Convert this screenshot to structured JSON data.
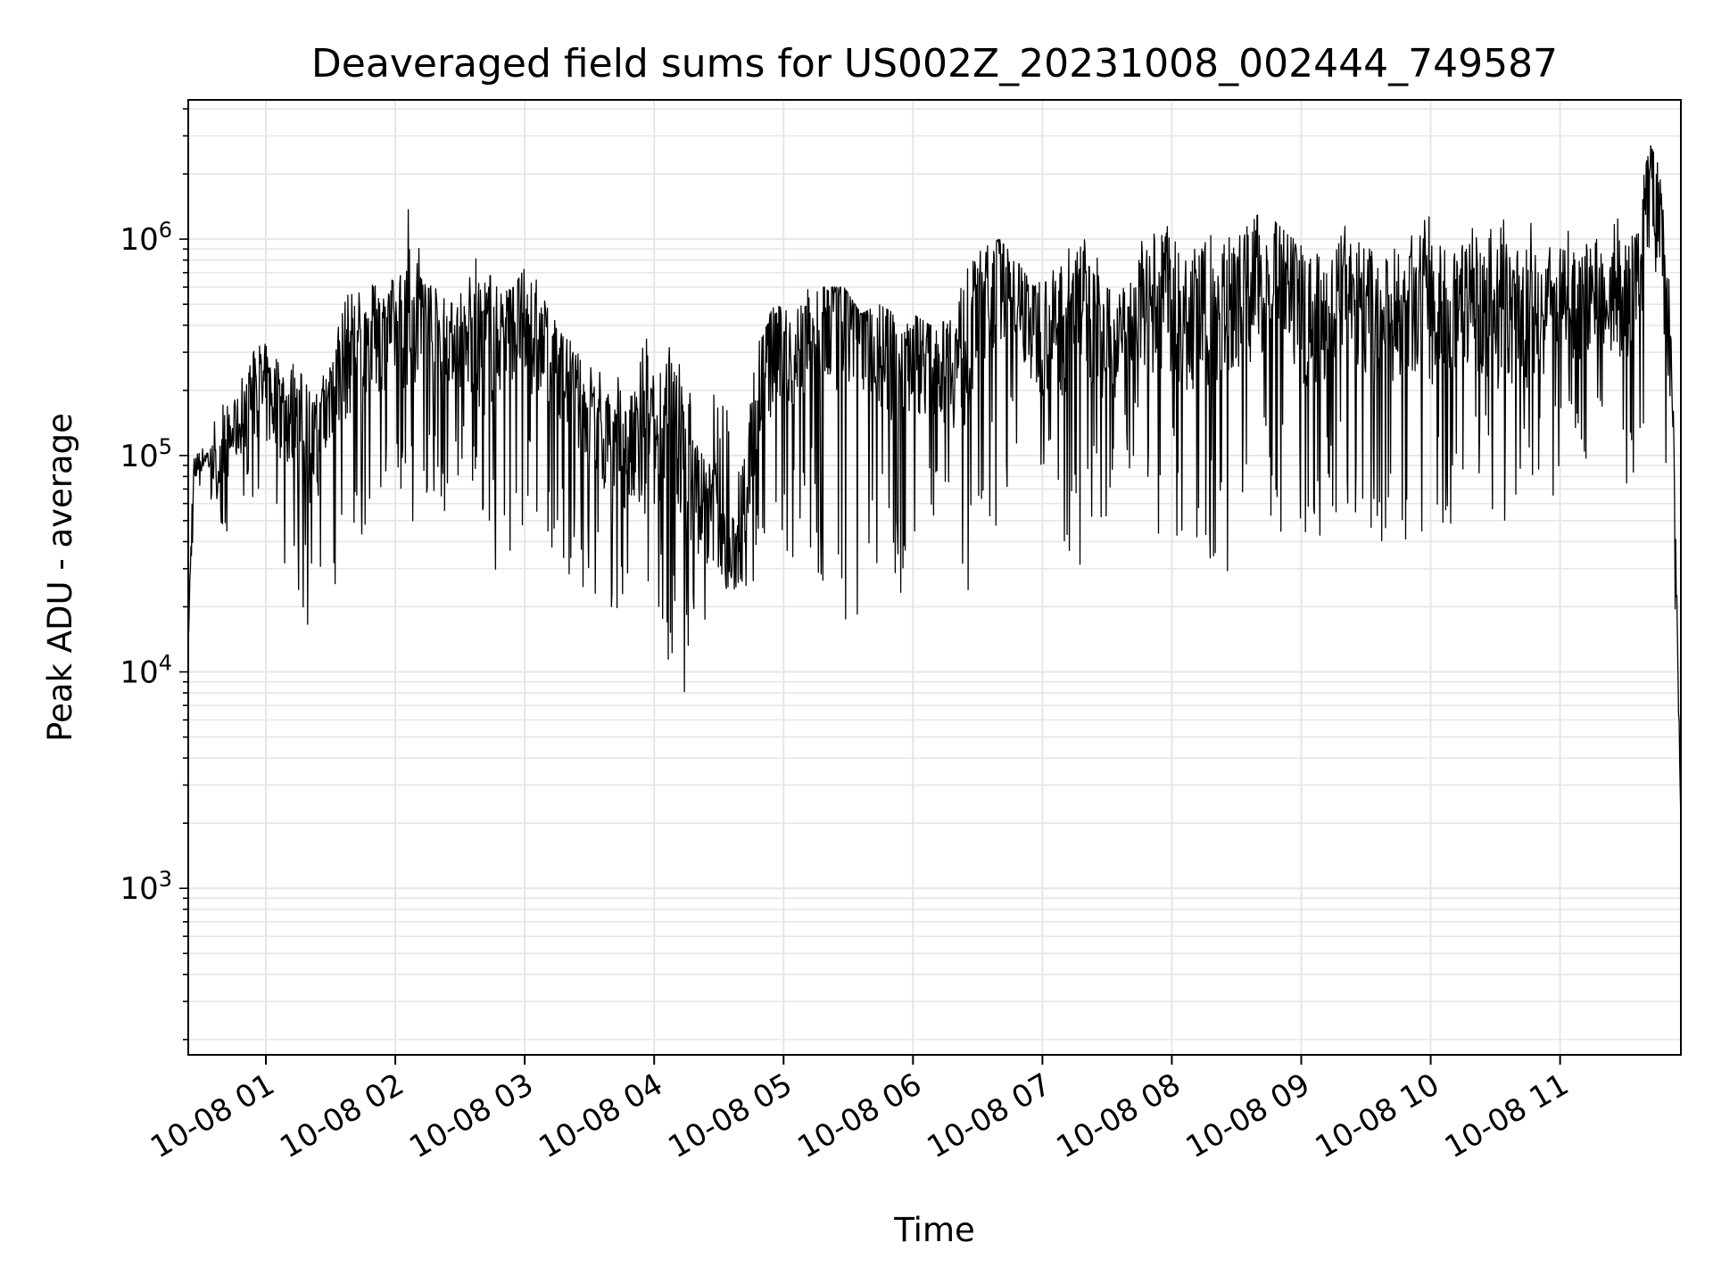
{
  "chart_data": {
    "type": "line",
    "title": "Deaveraged field sums for US002Z_20231008_002444_749587",
    "xlabel": "Time",
    "ylabel": "Peak ADU - average",
    "yscale": "log",
    "ylim": [
      170,
      4400000
    ],
    "xlim": [
      "2023-10-08 00:24",
      "2023-10-08 11:56"
    ],
    "grid": true,
    "line_color": "#000000",
    "grid_color": "#e6e6e6",
    "x_ticks": [
      "10-08 01",
      "10-08 02",
      "10-08 03",
      "10-08 04",
      "10-08 05",
      "10-08 06",
      "10-08 07",
      "10-08 08",
      "10-08 09",
      "10-08 10",
      "10-08 11"
    ],
    "x_tick_times": [
      "2023-10-08 01:00",
      "2023-10-08 02:00",
      "2023-10-08 03:00",
      "2023-10-08 04:00",
      "2023-10-08 05:00",
      "2023-10-08 06:00",
      "2023-10-08 07:00",
      "2023-10-08 08:00",
      "2023-10-08 09:00",
      "2023-10-08 10:00",
      "2023-10-08 11:00"
    ],
    "y_ticks": [
      {
        "value": 1000,
        "base": "10",
        "exp": "3"
      },
      {
        "value": 10000,
        "base": "10",
        "exp": "4"
      },
      {
        "value": 100000,
        "base": "10",
        "exp": "5"
      },
      {
        "value": 1000000,
        "base": "10",
        "exp": "6"
      }
    ],
    "series": [
      {
        "x": [
          "2023-10-08 00:24",
          "2023-10-08 00:26",
          "2023-10-08 00:28",
          "2023-10-08 00:32",
          "2023-10-08 00:38",
          "2023-10-08 00:44",
          "2023-10-08 00:50",
          "2023-10-08 00:56",
          "2023-10-08 01:03",
          "2023-10-08 01:10",
          "2023-10-08 01:17",
          "2023-10-08 01:24",
          "2023-10-08 01:30",
          "2023-10-08 01:38",
          "2023-10-08 01:46",
          "2023-10-08 01:53",
          "2023-10-08 02:00",
          "2023-10-08 02:06",
          "2023-10-08 02:13",
          "2023-10-08 02:20",
          "2023-10-08 02:27",
          "2023-10-08 02:34",
          "2023-10-08 02:41",
          "2023-10-08 02:48",
          "2023-10-08 02:55",
          "2023-10-08 03:02",
          "2023-10-08 03:10",
          "2023-10-08 03:18",
          "2023-10-08 03:26",
          "2023-10-08 03:34",
          "2023-10-08 03:42",
          "2023-10-08 03:50",
          "2023-10-08 03:58",
          "2023-10-08 04:06",
          "2023-10-08 04:14",
          "2023-10-08 04:22",
          "2023-10-08 04:30",
          "2023-10-08 04:34",
          "2023-10-08 04:40",
          "2023-10-08 04:48",
          "2023-10-08 04:56",
          "2023-10-08 05:04",
          "2023-10-08 05:12",
          "2023-10-08 05:20",
          "2023-10-08 05:28",
          "2023-10-08 05:36",
          "2023-10-08 05:44",
          "2023-10-08 05:52",
          "2023-10-08 06:00",
          "2023-10-08 06:08",
          "2023-10-08 06:16",
          "2023-10-08 06:24",
          "2023-10-08 06:32",
          "2023-10-08 06:40",
          "2023-10-08 06:48",
          "2023-10-08 06:56",
          "2023-10-08 07:04",
          "2023-10-08 07:12",
          "2023-10-08 07:20",
          "2023-10-08 07:28",
          "2023-10-08 07:36",
          "2023-10-08 07:44",
          "2023-10-08 07:52",
          "2023-10-08 08:00",
          "2023-10-08 08:08",
          "2023-10-08 08:16",
          "2023-10-08 08:24",
          "2023-10-08 08:32",
          "2023-10-08 08:40",
          "2023-10-08 08:48",
          "2023-10-08 08:56",
          "2023-10-08 09:04",
          "2023-10-08 09:12",
          "2023-10-08 09:20",
          "2023-10-08 09:28",
          "2023-10-08 09:36",
          "2023-10-08 09:44",
          "2023-10-08 09:52",
          "2023-10-08 10:00",
          "2023-10-08 10:08",
          "2023-10-08 10:16",
          "2023-10-08 10:24",
          "2023-10-08 10:32",
          "2023-10-08 10:40",
          "2023-10-08 10:48",
          "2023-10-08 10:56",
          "2023-10-08 11:04",
          "2023-10-08 11:12",
          "2023-10-08 11:20",
          "2023-10-08 11:28",
          "2023-10-08 11:36",
          "2023-10-08 11:42",
          "2023-10-08 11:48",
          "2023-10-08 11:52",
          "2023-10-08 11:56"
        ],
        "y": [
          14000,
          60000,
          90000,
          100000,
          85000,
          120000,
          150000,
          200000,
          180000,
          160000,
          130000,
          100000,
          200000,
          300000,
          330000,
          350000,
          380000,
          420000,
          400000,
          380000,
          360000,
          300000,
          330000,
          380000,
          450000,
          360000,
          300000,
          250000,
          150000,
          120000,
          110000,
          100000,
          100000,
          150000,
          100000,
          60000,
          50000,
          30000,
          40000,
          200000,
          300000,
          280000,
          350000,
          400000,
          450000,
          420000,
          300000,
          250000,
          300000,
          280000,
          260000,
          300000,
          500000,
          700000,
          550000,
          400000,
          350000,
          450000,
          550000,
          300000,
          350000,
          450000,
          500000,
          500000,
          380000,
          450000,
          450000,
          550000,
          650000,
          700000,
          480000,
          430000,
          450000,
          520000,
          500000,
          400000,
          450000,
          500000,
          450000,
          450000,
          480000,
          500000,
          450000,
          450000,
          420000,
          500000,
          480000,
          520000,
          550000,
          500000,
          600000,
          2000000,
          700000,
          200000,
          2000
        ],
        "y_min": [
          14000,
          14000,
          60000,
          70000,
          50000,
          40000,
          60000,
          25000,
          30000,
          20000,
          15000,
          12000,
          20000,
          25000,
          40000,
          50000,
          60000,
          50000,
          40000,
          45000,
          50000,
          80000,
          30000,
          25000,
          30000,
          50000,
          40000,
          30000,
          20000,
          20000,
          15000,
          12000,
          11000,
          10000,
          7500,
          12000,
          20000,
          25000,
          20000,
          18000,
          30000,
          25000,
          40000,
          15000,
          13000,
          17000,
          30000,
          20000,
          25000,
          30000,
          25000,
          15000,
          40000,
          40000,
          100000,
          20000,
          50000,
          17000,
          40000,
          40000,
          60000,
          100000,
          40000,
          45000,
          35000,
          30000,
          25000,
          40000,
          30000,
          50000,
          35000,
          40000,
          45000,
          60000,
          40000,
          40000,
          40000,
          35000,
          45000,
          45000,
          45000,
          50000,
          50000,
          45000,
          50000,
          60000,
          80000,
          70000,
          100000,
          70000,
          80000,
          100000,
          100000,
          60000,
          2000
        ],
        "y_max": [
          20000,
          110000,
          110000,
          120000,
          160000,
          200000,
          260000,
          330000,
          330000,
          280000,
          250000,
          240000,
          350000,
          550000,
          600000,
          650000,
          800000,
          1400000,
          800000,
          550000,
          500000,
          700000,
          1000000,
          550000,
          600000,
          800000,
          500000,
          350000,
          320000,
          260000,
          230000,
          250000,
          450000,
          400000,
          280000,
          220000,
          200000,
          180000,
          150000,
          350000,
          500000,
          450000,
          600000,
          600000,
          600000,
          450000,
          500000,
          450000,
          450000,
          400000,
          420000,
          700000,
          900000,
          1000000,
          800000,
          600000,
          700000,
          900000,
          1000000,
          800000,
          700000,
          1200000,
          1200000,
          1200000,
          900000,
          1100000,
          1000000,
          1100000,
          1300000,
          1200000,
          1000000,
          1100000,
          1000000,
          1200000,
          1100000,
          1000000,
          1000000,
          1100000,
          1300000,
          1000000,
          1200000,
          1400000,
          1800000,
          1500000,
          1200000,
          1000000,
          1200000,
          1400000,
          1100000,
          1300000,
          1600000,
          2700000,
          2000000,
          500000,
          2000
        ]
      }
    ]
  }
}
